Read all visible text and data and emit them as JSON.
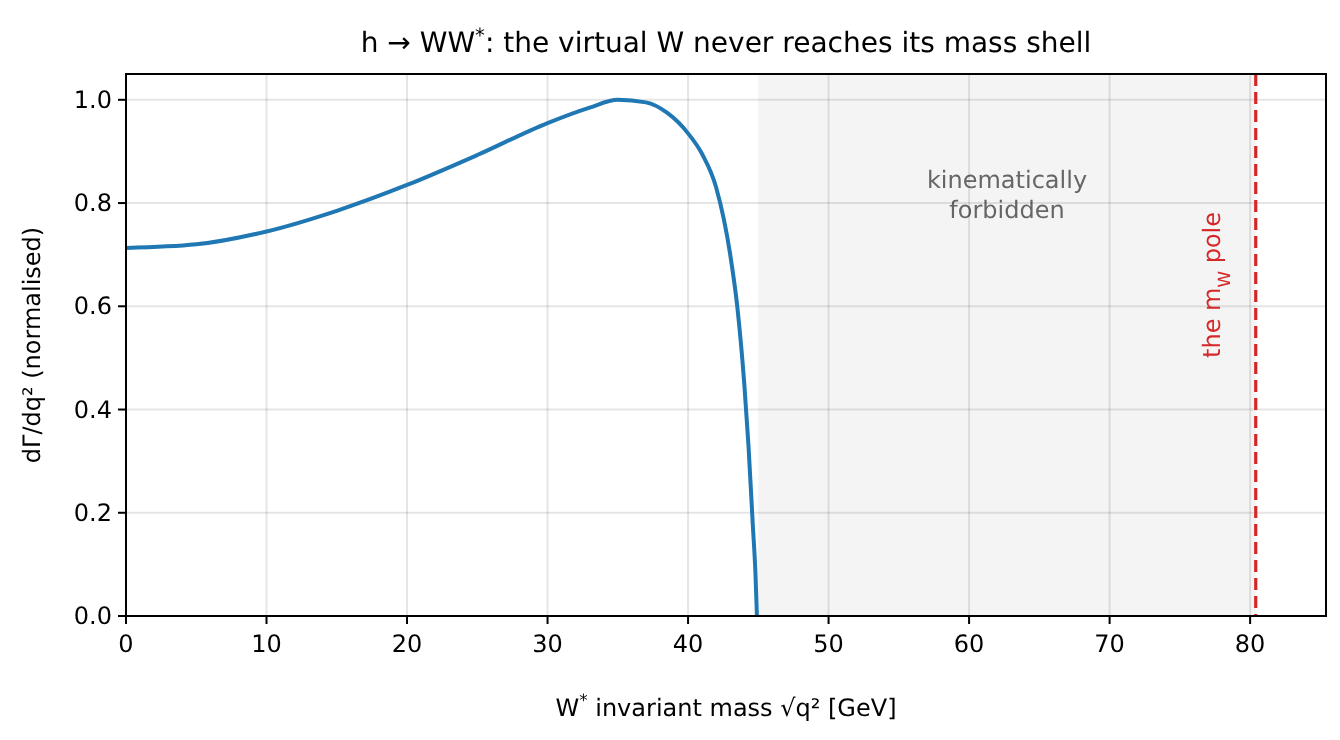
{
  "chart_data": {
    "type": "line",
    "title": "h → WW$^{*}$: the virtual W never reaches its mass shell",
    "xlabel": "W$^{*}$ invariant mass  √q²  [GeV]",
    "ylabel": "dΓ/dq²  (normalised)",
    "x": [
      0,
      5,
      10,
      15,
      20,
      25,
      30,
      33,
      35,
      37,
      38.5,
      40,
      41,
      42,
      43,
      43.5,
      44,
      44.3,
      44.6,
      44.8,
      44.9
    ],
    "series": [
      {
        "color": "#1f77b4",
        "values": [
          0.713,
          0.72,
          0.745,
          0.785,
          0.835,
          0.893,
          0.955,
          0.985,
          1.0,
          0.995,
          0.975,
          0.935,
          0.895,
          0.83,
          0.7,
          0.6,
          0.45,
          0.33,
          0.18,
          0.08,
          0
        ]
      }
    ],
    "xlim": [
      0,
      85.4
    ],
    "xticks": [
      0,
      10,
      20,
      30,
      40,
      50,
      60,
      70,
      80
    ],
    "ylim": [
      0,
      1.05
    ],
    "yticks": [
      {
        "value": 0,
        "label": "0.0"
      },
      0.2,
      0.4,
      0.6,
      0.8,
      {
        "value": 1,
        "label": "1.0"
      }
    ],
    "bands": [
      {
        "axis": "x",
        "from": 45,
        "to": 80.4,
        "label": "kinematically\nforbidden",
        "color": "#f4f4f4"
      }
    ],
    "ref_lines": [
      {
        "axis": "x",
        "value": 80.4,
        "label": "the m$_{W}$ pole",
        "color": "#d62728",
        "line_style": "dashed"
      }
    ],
    "grid": true,
    "marker": "none",
    "line_style": "solid"
  }
}
